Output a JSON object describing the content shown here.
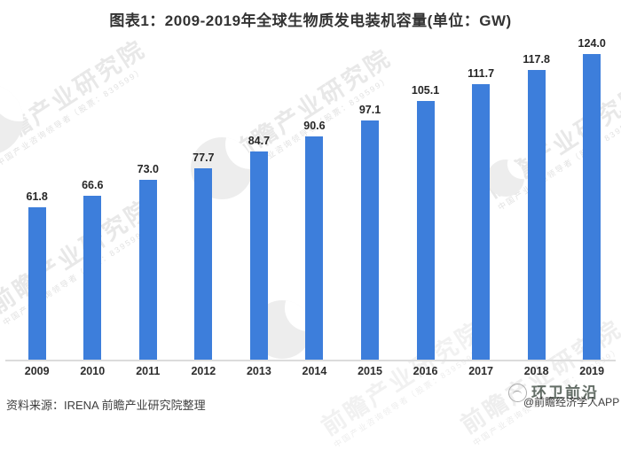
{
  "title": "图表1：2009-2019年全球生物质发电装机容量(单位：GW)",
  "chart_data": {
    "type": "bar",
    "title": "图表1：2009-2019年全球生物质发电装机容量(单位：GW)",
    "unit": "GW",
    "categories": [
      "2009",
      "2010",
      "2011",
      "2012",
      "2013",
      "2014",
      "2015",
      "2016",
      "2017",
      "2018",
      "2019"
    ],
    "values": [
      61.8,
      66.6,
      73.0,
      77.7,
      84.7,
      90.6,
      97.1,
      105.1,
      111.7,
      117.8,
      124.0
    ],
    "value_label_decimals": 1,
    "bar_color": "#3d7edb",
    "value_label_color": "#262626",
    "axis_line_color": "#dcdcdc",
    "ylim": [
      0,
      146
    ],
    "grid": false,
    "legend": false,
    "y_axis_visible": false
  },
  "watermark": {
    "main": "前瞻产业研究院",
    "sub": "中国产业咨询领导者（股票：839599）",
    "color": "#e8e8e8"
  },
  "footer": {
    "source": "资料来源：IRENA 前瞻产业研究院整理",
    "brand_overlay": "环卫前沿",
    "brand_credit": "@前瞻经济学人APP"
  }
}
